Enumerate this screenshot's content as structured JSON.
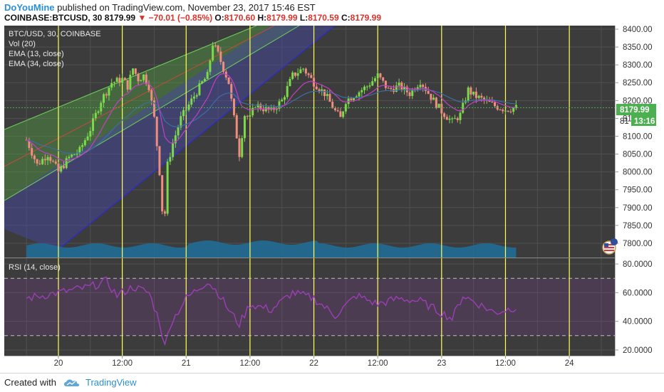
{
  "header": {
    "author": "DoYouMine",
    "published": " published on TradingView.com, November 23, 2017 15:46 EST",
    "symbol": "COINBASE:BTCUSD, 30",
    "price": "8179.99",
    "arrow": "▼",
    "change": "−70.01 (−0.85%)",
    "o_label": "O:",
    "o_value": "8170.60",
    "h_label": "H:",
    "h_value": "8179.99",
    "l_label": "L:",
    "l_value": "8170.59",
    "c_label": "C:",
    "c_value": "8179.99"
  },
  "legend": {
    "title": "BTC/USD, 30, COINBASE",
    "vol": "Vol (20)",
    "ema13": "EMA (13, close)",
    "ema34": "EMA (34, close)"
  },
  "rsi_legend": "RSI (14, close)",
  "price_badge": "8179.99",
  "timer_badge": "13:16",
  "partial_label": "81",
  "footer": {
    "created": "Created with",
    "brand": "TradingView"
  },
  "colors": {
    "pane_bg": "#3c3c3c",
    "grid": "#505050",
    "up": "#7bd94a",
    "down": "#ef8d7f",
    "ema13": "#c23fc4",
    "ema34": "#3a6ea5",
    "vlines": "#ffff55",
    "rsi": "#9a3fb5",
    "volume": "#1e6f9a",
    "badge": "#4caf50"
  },
  "chart_data": {
    "type": "candlestick",
    "price_axis": {
      "min": 7760,
      "max": 8410,
      "ticks": [
        8400,
        8350,
        8300,
        8250,
        8200,
        8150,
        8100,
        8050,
        8000,
        7950,
        7900,
        7850,
        7800
      ],
      "tick_labels": [
        "8400.00",
        "8350.00",
        "8300.00",
        "8250.00",
        "8200.00",
        "8150.00",
        "8100.00",
        "8050.00",
        "8000.00",
        "7950.00",
        "7900.00",
        "7850.00",
        "7800.00"
      ]
    },
    "rsi_axis": {
      "min": 16,
      "max": 84,
      "ticks": [
        80,
        60,
        40,
        20
      ],
      "tick_labels": [
        "80.0000",
        "60.0000",
        "40.0000",
        "20.0000"
      ],
      "bands": [
        70,
        30
      ]
    },
    "x_axis": {
      "start_hour": -6,
      "end_hour": 96,
      "ticks": [
        {
          "hour": 0,
          "label": "20"
        },
        {
          "hour": 12,
          "label": "12:00"
        },
        {
          "hour": 24,
          "label": "21"
        },
        {
          "hour": 36,
          "label": "12:00"
        },
        {
          "hour": 48,
          "label": "22"
        },
        {
          "hour": 60,
          "label": "12:00"
        },
        {
          "hour": 72,
          "label": "23"
        },
        {
          "hour": 84,
          "label": "12:00"
        },
        {
          "hour": 96,
          "label": "24"
        }
      ]
    },
    "close_keypoints": [
      [
        -6,
        8090
      ],
      [
        -4,
        8020
      ],
      [
        -2,
        8050
      ],
      [
        0,
        8000
      ],
      [
        2,
        8040
      ],
      [
        4,
        8060
      ],
      [
        6,
        8120
      ],
      [
        8,
        8200
      ],
      [
        10,
        8250
      ],
      [
        12,
        8260
      ],
      [
        13,
        8240
      ],
      [
        14,
        8290
      ],
      [
        15,
        8260
      ],
      [
        16,
        8270
      ],
      [
        17,
        8240
      ],
      [
        18,
        8150
      ],
      [
        19,
        8000
      ],
      [
        19.8,
        7830
      ],
      [
        20.5,
        8020
      ],
      [
        21.5,
        8080
      ],
      [
        23,
        8150
      ],
      [
        25,
        8200
      ],
      [
        27,
        8250
      ],
      [
        28,
        8270
      ],
      [
        29,
        8360
      ],
      [
        30,
        8330
      ],
      [
        31,
        8290
      ],
      [
        32,
        8250
      ],
      [
        33,
        8150
      ],
      [
        34,
        8050
      ],
      [
        35,
        8160
      ],
      [
        36,
        8150
      ],
      [
        37,
        8190
      ],
      [
        38,
        8180
      ],
      [
        40,
        8170
      ],
      [
        42,
        8200
      ],
      [
        44,
        8270
      ],
      [
        46,
        8290
      ],
      [
        48,
        8250
      ],
      [
        50,
        8220
      ],
      [
        52,
        8170
      ],
      [
        53,
        8150
      ],
      [
        54,
        8200
      ],
      [
        56,
        8220
      ],
      [
        58,
        8240
      ],
      [
        60,
        8270
      ],
      [
        62,
        8230
      ],
      [
        64,
        8240
      ],
      [
        66,
        8220
      ],
      [
        68,
        8255
      ],
      [
        70,
        8210
      ],
      [
        72,
        8170
      ],
      [
        74,
        8140
      ],
      [
        75.5,
        8160
      ],
      [
        77,
        8230
      ],
      [
        78,
        8215
      ],
      [
        80,
        8200
      ],
      [
        82,
        8185
      ],
      [
        84,
        8175
      ],
      [
        86,
        8180
      ]
    ],
    "volume_note": "Vol (20)",
    "rsi_keypoints": [
      [
        -6,
        56
      ],
      [
        0,
        60
      ],
      [
        6,
        64
      ],
      [
        9,
        68
      ],
      [
        11,
        58
      ],
      [
        14,
        64
      ],
      [
        17,
        60
      ],
      [
        19,
        40
      ],
      [
        20,
        22
      ],
      [
        21,
        38
      ],
      [
        24,
        56
      ],
      [
        28,
        68
      ],
      [
        30,
        60
      ],
      [
        32,
        48
      ],
      [
        34,
        38
      ],
      [
        36,
        52
      ],
      [
        40,
        48
      ],
      [
        44,
        60
      ],
      [
        48,
        56
      ],
      [
        52,
        44
      ],
      [
        56,
        58
      ],
      [
        60,
        52
      ],
      [
        64,
        56
      ],
      [
        68,
        54
      ],
      [
        72,
        46
      ],
      [
        74,
        42
      ],
      [
        76,
        58
      ],
      [
        78,
        54
      ],
      [
        82,
        46
      ],
      [
        86,
        50
      ]
    ]
  }
}
